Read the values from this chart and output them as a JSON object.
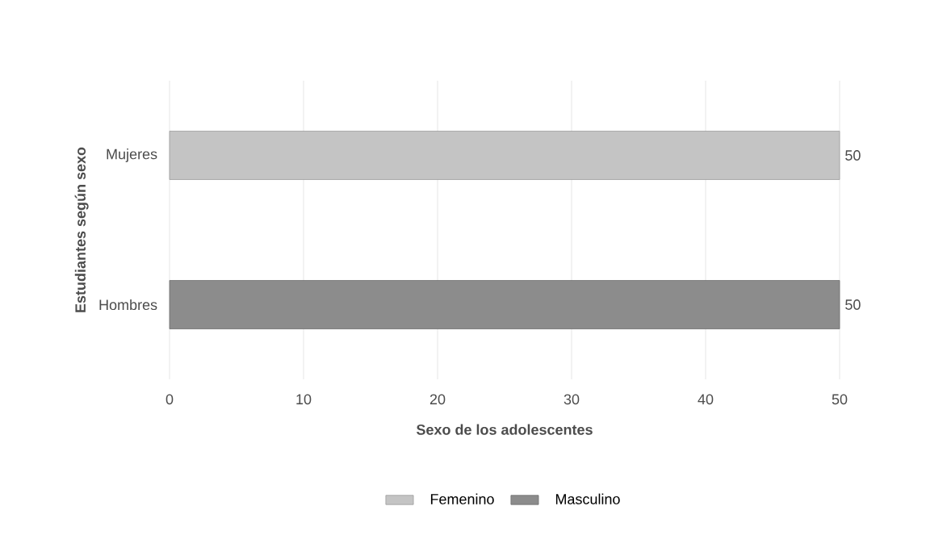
{
  "chart_data": {
    "type": "bar",
    "orientation": "horizontal",
    "categories": [
      "Mujeres",
      "Hombres"
    ],
    "series": [
      {
        "name": "Femenino",
        "color": "#c4c4c4",
        "values": [
          50,
          null
        ]
      },
      {
        "name": "Masculino",
        "color": "#8c8c8c",
        "values": [
          null,
          50
        ]
      }
    ],
    "xlim": [
      0,
      50
    ],
    "xticks": [
      0,
      10,
      20,
      30,
      40,
      50
    ],
    "xlabel": "Sexo de los adolescentes",
    "ylabel": "Estudiantes según sexo",
    "grid": "x",
    "legend": "bottom",
    "data_labels": true
  }
}
